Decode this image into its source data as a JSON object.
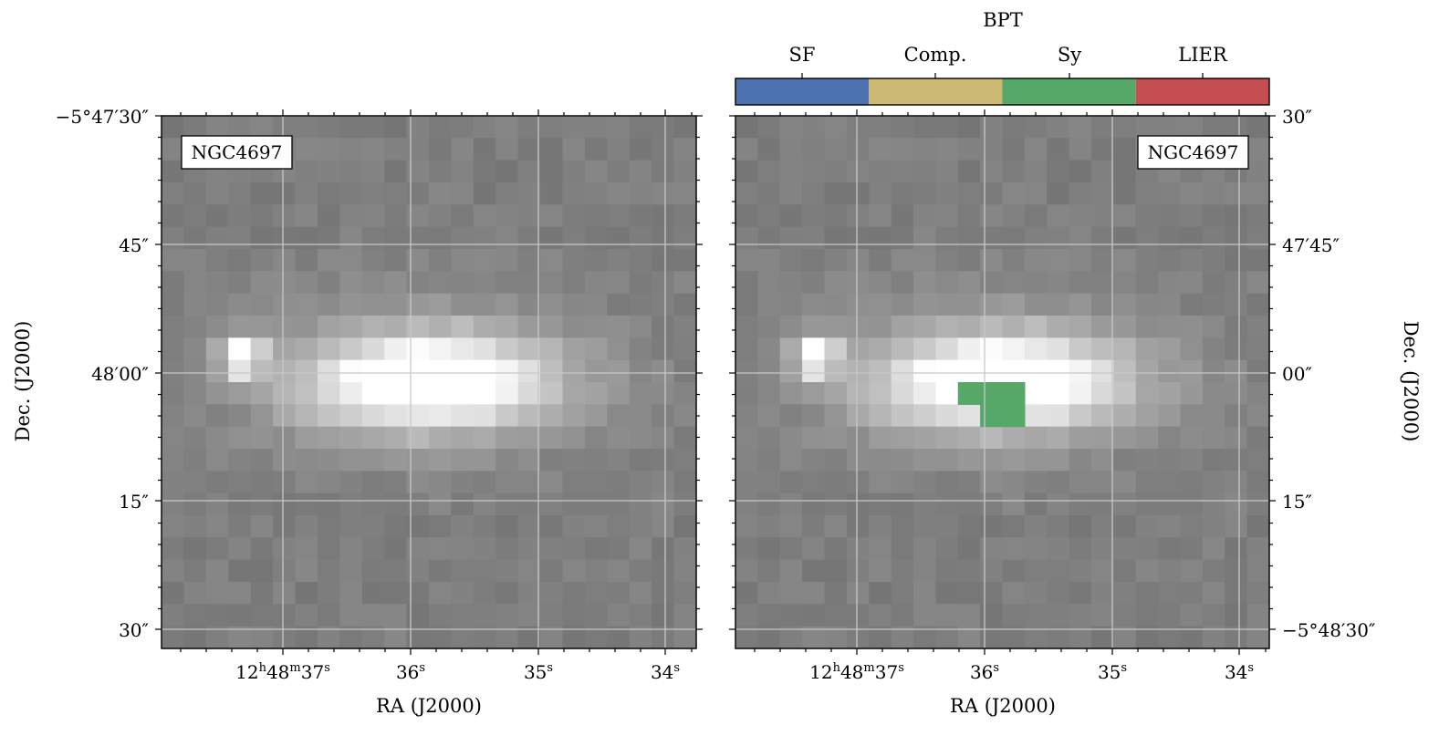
{
  "chart_data": [
    {
      "type": "heatmap",
      "panel": "left",
      "object_label": "NGC4697",
      "xlabel": "RA (J2000)",
      "ylabel": "Dec. (J2000)",
      "x_ticks": [
        {
          "main": "12",
          "sup1": "h",
          "mid": "48",
          "sup2": "m",
          "tail": "37",
          "sup3": "s"
        },
        {
          "main": "36",
          "sup3": "s"
        },
        {
          "main": "35",
          "sup3": "s"
        },
        {
          "main": "34",
          "sup3": "s"
        }
      ],
      "y_ticks": [
        "−5°47′30″",
        "45″",
        "48′00″",
        "15″",
        "30″"
      ],
      "colormap": "gray",
      "grid": true
    },
    {
      "type": "heatmap",
      "panel": "right",
      "object_label": "NGC4697",
      "xlabel": "RA (J2000)",
      "ylabel": "Dec. (J2000)",
      "x_ticks": [
        {
          "main": "12",
          "sup1": "h",
          "mid": "48",
          "sup2": "m",
          "tail": "37",
          "sup3": "s"
        },
        {
          "main": "36",
          "sup3": "s"
        },
        {
          "main": "35",
          "sup3": "s"
        },
        {
          "main": "34",
          "sup3": "s"
        }
      ],
      "y_ticks": [
        "30″",
        "47′45″",
        "00″",
        "15″",
        "−5°48′30″"
      ],
      "colormap": "gray",
      "grid": true,
      "overlay_class": "Sy",
      "colorbar": {
        "title": "BPT",
        "categories": [
          "SF",
          "Comp.",
          "Sy",
          "LIER"
        ],
        "colors": [
          "#4c72b0",
          "#ccb974",
          "#55a868",
          "#c44e52"
        ]
      }
    }
  ]
}
